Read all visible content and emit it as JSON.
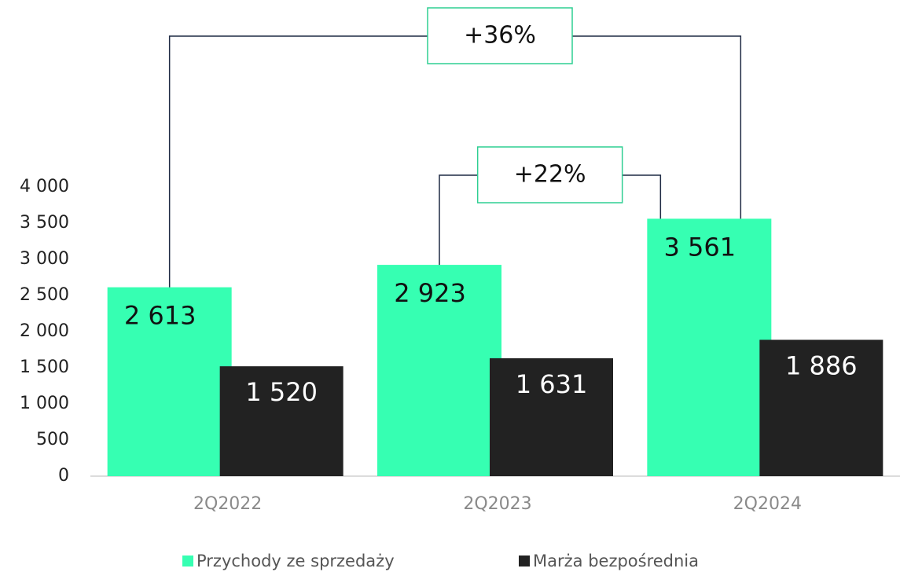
{
  "chart_data": {
    "type": "bar",
    "categories": [
      "2Q2022",
      "2Q2023",
      "2Q2024"
    ],
    "series": [
      {
        "name": "Przychody ze sprzedaży",
        "color": "#36ffb2",
        "values": [
          2613,
          2923,
          3561
        ],
        "value_labels": [
          "2 613",
          "2 923",
          "3 561"
        ]
      },
      {
        "name": "Marża bezpośrednia",
        "color": "#222222",
        "values": [
          1520,
          1631,
          1886
        ],
        "value_labels": [
          "1 520",
          "1 631",
          "1 886"
        ]
      }
    ],
    "ylim": [
      0,
      4000
    ],
    "yticks": [
      0,
      500,
      {
        "value": 1000,
        "label": "1 000"
      },
      {
        "value": 1500,
        "label": "1 500"
      },
      {
        "value": 2000,
        "label": "2 000"
      },
      {
        "value": 2500,
        "label": "2 500"
      },
      {
        "value": 3000,
        "label": "3 000"
      },
      {
        "value": 3500,
        "label": "3 500"
      },
      {
        "value": 4000,
        "label": "4 000"
      }
    ],
    "grid": false,
    "legend": "bottom",
    "annotations": [
      {
        "text": "+36%"
      },
      {
        "text": "+22%"
      }
    ]
  }
}
